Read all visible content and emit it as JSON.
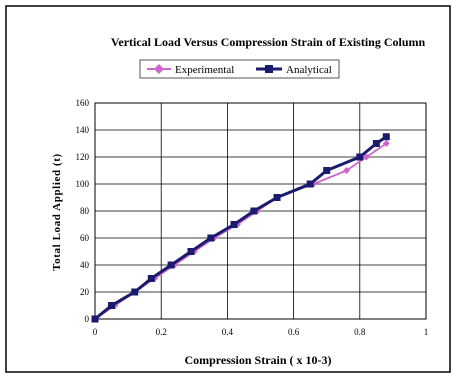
{
  "chart_data": {
    "type": "line",
    "title": "Vertical Load Versus Compression Strain of Existing Column",
    "xlabel": "Compression Strain ( x 10-3)",
    "ylabel": "Total Load Applied (t)",
    "xlim": [
      0,
      1
    ],
    "ylim": [
      0,
      160
    ],
    "xticks": [
      "0",
      "0.2",
      "0.4",
      "0.6",
      "0.8",
      "1"
    ],
    "yticks": [
      "0",
      "20",
      "40",
      "60",
      "80",
      "100",
      "120",
      "140",
      "160"
    ],
    "grid": true,
    "legend": "top",
    "series": [
      {
        "name": "Experimental",
        "legend_label": "Experimental",
        "color": "#cc66cc",
        "marker": "diamond",
        "points": [
          [
            0,
            0
          ],
          [
            0.06,
            10
          ],
          [
            0.12,
            20
          ],
          [
            0.18,
            30
          ],
          [
            0.24,
            40
          ],
          [
            0.3,
            50
          ],
          [
            0.36,
            60
          ],
          [
            0.43,
            70
          ],
          [
            0.49,
            80
          ],
          [
            0.55,
            90
          ],
          [
            0.66,
            100
          ],
          [
            0.76,
            110
          ],
          [
            0.82,
            120
          ],
          [
            0.88,
            130
          ]
        ]
      },
      {
        "name": "Analytical",
        "legend_label": "Analytical",
        "color": "#1a1a6e",
        "marker": "square",
        "points": [
          [
            0,
            0
          ],
          [
            0.05,
            10
          ],
          [
            0.12,
            20
          ],
          [
            0.17,
            30
          ],
          [
            0.23,
            40
          ],
          [
            0.29,
            50
          ],
          [
            0.35,
            60
          ],
          [
            0.42,
            70
          ],
          [
            0.48,
            80
          ],
          [
            0.55,
            90
          ],
          [
            0.65,
            100
          ],
          [
            0.7,
            110
          ],
          [
            0.8,
            120
          ],
          [
            0.85,
            130
          ],
          [
            0.88,
            135
          ]
        ]
      }
    ]
  }
}
